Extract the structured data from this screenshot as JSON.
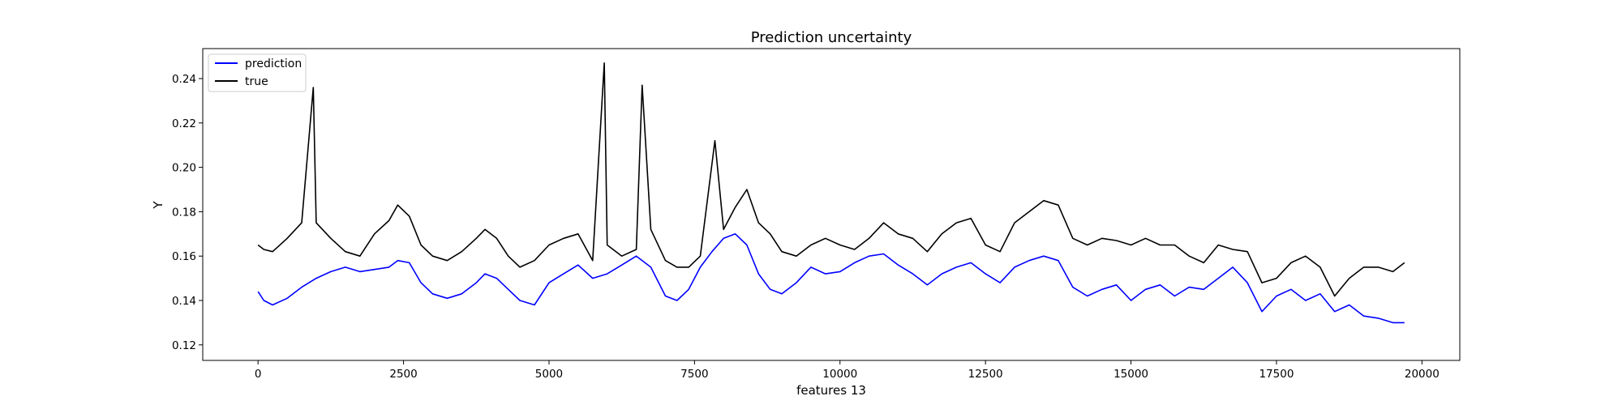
{
  "chart_data": {
    "type": "line",
    "title": "Prediction uncertainty",
    "xlabel": "features 13",
    "ylabel": "Y",
    "xlim": [
      -950,
      20650
    ],
    "ylim": [
      0.113,
      0.2535
    ],
    "xticks": [
      0,
      2500,
      5000,
      7500,
      10000,
      12500,
      15000,
      17500,
      20000
    ],
    "xtick_labels": [
      "0",
      "2500",
      "5000",
      "7500",
      "10000",
      "12500",
      "15000",
      "17500",
      "20000"
    ],
    "yticks": [
      0.12,
      0.14,
      0.16,
      0.18,
      0.2,
      0.22,
      0.24
    ],
    "ytick_labels": [
      "0.12",
      "0.14",
      "0.16",
      "0.18",
      "0.20",
      "0.22",
      "0.24"
    ],
    "grid": false,
    "legend_position": "top-left",
    "series": [
      {
        "name": "prediction",
        "color": "#0000ff",
        "x": [
          0,
          100,
          250,
          500,
          750,
          1000,
          1250,
          1500,
          1750,
          2000,
          2250,
          2400,
          2600,
          2800,
          3000,
          3250,
          3500,
          3750,
          3900,
          4100,
          4300,
          4500,
          4750,
          5000,
          5250,
          5500,
          5750,
          6000,
          6250,
          6500,
          6750,
          7000,
          7200,
          7400,
          7600,
          7800,
          8000,
          8200,
          8400,
          8600,
          8800,
          9000,
          9250,
          9500,
          9750,
          10000,
          10250,
          10500,
          10750,
          11000,
          11250,
          11500,
          11750,
          12000,
          12250,
          12500,
          12750,
          13000,
          13250,
          13500,
          13750,
          14000,
          14250,
          14500,
          14750,
          15000,
          15250,
          15500,
          15750,
          16000,
          16250,
          16500,
          16750,
          17000,
          17250,
          17500,
          17750,
          18000,
          18250,
          18500,
          18750,
          19000,
          19250,
          19500,
          19700
        ],
        "y": [
          0.144,
          0.14,
          0.138,
          0.141,
          0.146,
          0.15,
          0.153,
          0.155,
          0.153,
          0.154,
          0.155,
          0.158,
          0.157,
          0.148,
          0.143,
          0.141,
          0.143,
          0.148,
          0.152,
          0.15,
          0.145,
          0.14,
          0.138,
          0.148,
          0.152,
          0.156,
          0.15,
          0.152,
          0.156,
          0.16,
          0.155,
          0.142,
          0.14,
          0.145,
          0.155,
          0.162,
          0.168,
          0.17,
          0.165,
          0.152,
          0.145,
          0.143,
          0.148,
          0.155,
          0.152,
          0.153,
          0.157,
          0.16,
          0.161,
          0.156,
          0.152,
          0.147,
          0.152,
          0.155,
          0.157,
          0.152,
          0.148,
          0.155,
          0.158,
          0.16,
          0.158,
          0.146,
          0.142,
          0.145,
          0.147,
          0.14,
          0.145,
          0.147,
          0.142,
          0.146,
          0.145,
          0.15,
          0.155,
          0.148,
          0.135,
          0.142,
          0.145,
          0.14,
          0.143,
          0.135,
          0.138,
          0.133,
          0.132,
          0.13,
          0.13
        ]
      },
      {
        "name": "true",
        "color": "#000000",
        "x": [
          0,
          100,
          250,
          500,
          750,
          950,
          1000,
          1250,
          1500,
          1750,
          2000,
          2250,
          2400,
          2600,
          2800,
          3000,
          3250,
          3500,
          3750,
          3900,
          4100,
          4300,
          4500,
          4750,
          5000,
          5250,
          5500,
          5750,
          5950,
          6000,
          6250,
          6500,
          6600,
          6750,
          7000,
          7200,
          7400,
          7600,
          7850,
          8000,
          8200,
          8400,
          8600,
          8800,
          9000,
          9250,
          9500,
          9750,
          10000,
          10250,
          10500,
          10750,
          11000,
          11250,
          11500,
          11750,
          12000,
          12250,
          12500,
          12750,
          13000,
          13250,
          13500,
          13750,
          14000,
          14250,
          14500,
          14750,
          15000,
          15250,
          15500,
          15750,
          16000,
          16250,
          16500,
          16750,
          17000,
          17250,
          17500,
          17750,
          18000,
          18250,
          18500,
          18750,
          19000,
          19250,
          19500,
          19700
        ],
        "y": [
          0.165,
          0.163,
          0.162,
          0.168,
          0.175,
          0.236,
          0.175,
          0.168,
          0.162,
          0.16,
          0.17,
          0.176,
          0.183,
          0.178,
          0.165,
          0.16,
          0.158,
          0.162,
          0.168,
          0.172,
          0.168,
          0.16,
          0.155,
          0.158,
          0.165,
          0.168,
          0.17,
          0.158,
          0.247,
          0.165,
          0.16,
          0.163,
          0.237,
          0.172,
          0.158,
          0.155,
          0.155,
          0.16,
          0.212,
          0.172,
          0.182,
          0.19,
          0.175,
          0.17,
          0.162,
          0.16,
          0.165,
          0.168,
          0.165,
          0.163,
          0.168,
          0.175,
          0.17,
          0.168,
          0.162,
          0.17,
          0.175,
          0.177,
          0.165,
          0.162,
          0.175,
          0.18,
          0.185,
          0.183,
          0.168,
          0.165,
          0.168,
          0.167,
          0.165,
          0.168,
          0.165,
          0.165,
          0.16,
          0.157,
          0.165,
          0.163,
          0.162,
          0.148,
          0.15,
          0.157,
          0.16,
          0.155,
          0.142,
          0.15,
          0.155,
          0.155,
          0.153,
          0.157
        ]
      }
    ]
  }
}
